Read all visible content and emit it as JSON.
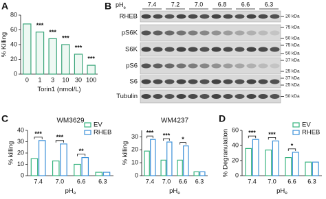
{
  "panels": [
    "A",
    "B",
    "C",
    "D"
  ],
  "blot": {
    "header": {
      "main": "pH",
      "sub": "e"
    },
    "lanes": [
      "7.4",
      "7.2",
      "7.0",
      "6.8",
      "6.6",
      "6.3"
    ],
    "rows": [
      {
        "label": "RHEB",
        "markers": [
          "20 kDa"
        ]
      },
      {
        "label": "pS6K",
        "markers": [
          "75 kDa",
          "50 kDa"
        ]
      },
      {
        "label": "S6K",
        "markers": [
          "75 kDa",
          "50 kDa"
        ]
      },
      {
        "label": "pS6",
        "markers": [
          "37 kDa",
          "25 kDa"
        ]
      },
      {
        "label": "S6",
        "markers": [
          "37 kDa",
          "25 kDa"
        ]
      },
      {
        "label": "Tubulin",
        "markers": [
          "50 kDa"
        ]
      }
    ]
  },
  "chart_data": [
    {
      "type": "bar",
      "ylabel": "% Killing",
      "xlabel": "Torin1 (nmol/L)",
      "categories": [
        "0",
        "1",
        "3",
        "10",
        "30",
        "100"
      ],
      "values": [
        68,
        57,
        48,
        40,
        27,
        12
      ],
      "color": "#3aa57a",
      "significance": [
        null,
        "***",
        "***",
        "***",
        "***",
        "***"
      ],
      "ylim": [
        0,
        80
      ],
      "yticks": [
        0,
        20,
        40,
        60,
        80
      ]
    },
    {
      "type": "bar",
      "title": "WM3629",
      "ylabel": "% killing",
      "xlabel": "pH",
      "xlabel_sub": "e",
      "categories": [
        "7.4",
        "7.0",
        "6.6",
        "6.3"
      ],
      "series": [
        {
          "name": "EV",
          "color": "#36b37e",
          "values": [
            15,
            13,
            10,
            3
          ]
        },
        {
          "name": "RHEB",
          "color": "#3a8fd8",
          "values": [
            31,
            28,
            16,
            3
          ]
        }
      ],
      "significance": [
        "***",
        "***",
        "**",
        null
      ],
      "legend": "top-right",
      "ylim": [
        0,
        40
      ],
      "yticks": [
        0,
        10,
        20,
        30,
        40
      ]
    },
    {
      "type": "bar",
      "title": "WM4237",
      "ylabel": "% killing",
      "xlabel": "pH",
      "xlabel_sub": "e",
      "categories": [
        "7.4",
        "7.0",
        "6.6",
        "6.3"
      ],
      "series": [
        {
          "name": "EV",
          "color": "#36b37e",
          "values": [
            19,
            12,
            12,
            3
          ]
        },
        {
          "name": "RHEB",
          "color": "#3a8fd8",
          "values": [
            28,
            26,
            23,
            3
          ]
        }
      ],
      "significance": [
        "***",
        "***",
        "*",
        null
      ],
      "ylim": [
        0,
        35
      ],
      "yticks": [
        0,
        10,
        20,
        30
      ]
    },
    {
      "type": "bar",
      "ylabel": "% Degranulation",
      "xlabel": "pH",
      "xlabel_sub": "e",
      "categories": [
        "7.4",
        "7.0",
        "6.6",
        "6.3"
      ],
      "series": [
        {
          "name": "EV",
          "color": "#36b37e",
          "values": [
            36,
            34,
            24,
            18
          ]
        },
        {
          "name": "RHEB",
          "color": "#3a8fd8",
          "values": [
            48,
            46,
            31,
            18
          ]
        }
      ],
      "significance": [
        "***",
        "***",
        "*",
        null
      ],
      "legend": "top-right",
      "ylim": [
        0,
        60
      ],
      "yticks": [
        0,
        20,
        40,
        60
      ]
    }
  ]
}
